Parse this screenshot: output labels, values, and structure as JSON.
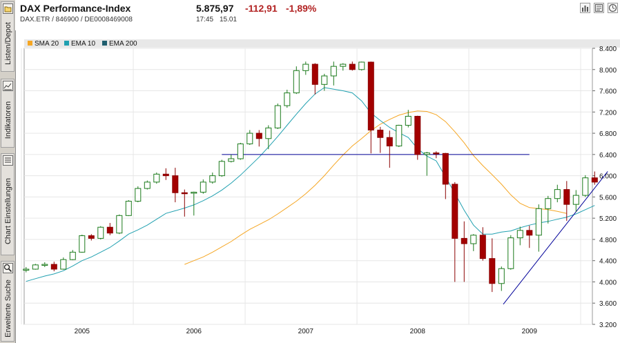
{
  "sidebar": {
    "tabs": [
      {
        "label": "Listen/Depot",
        "icon": "folder-icon"
      },
      {
        "label": "Indikatoren",
        "icon": "chart-icon"
      },
      {
        "label": "Chart Einstellungen",
        "icon": "list-icon"
      },
      {
        "label": "Erweiterte Suche",
        "icon": "magnifier-icon"
      }
    ]
  },
  "header": {
    "title": "DAX Performance-Index",
    "symbol_line": "DAX.ETR  /  846900  /  DE0008469008",
    "price": "5.875,97",
    "change": "-112,91",
    "change_pct": "-1,89%",
    "time": "17:45",
    "date": "15.01",
    "tools": [
      "bar-chart-icon",
      "news-icon",
      "clock-icon"
    ]
  },
  "chart_data": {
    "type": "candlestick",
    "xlabel": "",
    "ylabel": "",
    "ylim": [
      3200,
      8400
    ],
    "yticks": [
      "8.400",
      "8.000",
      "7.600",
      "7.200",
      "6.800",
      "6.400",
      "6.000",
      "5.600",
      "5.200",
      "4.800",
      "4.400",
      "4.000",
      "3.600",
      "3.200"
    ],
    "x_tick_labels": [
      "2005",
      "2006",
      "2007",
      "2008",
      "2009"
    ],
    "x_tick_months": [
      6,
      18,
      30,
      42,
      54
    ],
    "grid": true,
    "legend": [
      {
        "name": "SMA 20",
        "color": "#f5a623"
      },
      {
        "name": "EMA 10",
        "color": "#20a0b0"
      },
      {
        "name": "EMA 200",
        "color": "#1f5e6e"
      }
    ],
    "candles": [
      [
        4220,
        4280,
        4180,
        4240
      ],
      [
        4240,
        4340,
        4230,
        4320
      ],
      [
        4320,
        4370,
        4280,
        4330
      ],
      [
        4330,
        4380,
        4200,
        4240
      ],
      [
        4240,
        4460,
        4230,
        4420
      ],
      [
        4420,
        4600,
        4410,
        4560
      ],
      [
        4560,
        4890,
        4550,
        4870
      ],
      [
        4870,
        4900,
        4780,
        4820
      ],
      [
        4820,
        5050,
        4800,
        5030
      ],
      [
        5030,
        5110,
        4880,
        4920
      ],
      [
        4920,
        5270,
        4900,
        5250
      ],
      [
        5250,
        5540,
        5240,
        5520
      ],
      [
        5520,
        5800,
        5500,
        5760
      ],
      [
        5760,
        5910,
        5740,
        5880
      ],
      [
        5880,
        6060,
        5850,
        6030
      ],
      [
        6030,
        6140,
        5920,
        6000
      ],
      [
        6000,
        6150,
        5500,
        5680
      ],
      [
        5680,
        5740,
        5230,
        5670
      ],
      [
        5670,
        5700,
        5250,
        5690
      ],
      [
        5690,
        5930,
        5660,
        5880
      ],
      [
        5880,
        6060,
        5850,
        6000
      ],
      [
        6000,
        6300,
        5980,
        6270
      ],
      [
        6270,
        6400,
        6250,
        6320
      ],
      [
        6320,
        6620,
        6300,
        6600
      ],
      [
        6600,
        6860,
        6580,
        6800
      ],
      [
        6800,
        6860,
        6550,
        6700
      ],
      [
        6700,
        6950,
        6500,
        6900
      ],
      [
        6900,
        7360,
        6880,
        7320
      ],
      [
        7320,
        7620,
        7280,
        7560
      ],
      [
        7560,
        8060,
        7540,
        7980
      ],
      [
        7980,
        8150,
        7900,
        8100
      ],
      [
        8100,
        8120,
        7530,
        7720
      ],
      [
        7720,
        7920,
        7600,
        7880
      ],
      [
        7880,
        8150,
        7700,
        8060
      ],
      [
        8060,
        8120,
        7980,
        8100
      ],
      [
        8100,
        8150,
        7980,
        8000
      ],
      [
        8000,
        8150,
        7980,
        8140
      ],
      [
        8140,
        8150,
        6420,
        6860
      ],
      [
        6860,
        6920,
        6430,
        6720
      ],
      [
        6720,
        6850,
        6150,
        6560
      ],
      [
        6560,
        6960,
        6540,
        6950
      ],
      [
        6950,
        7240,
        6910,
        7120
      ],
      [
        7120,
        7130,
        6300,
        6400
      ],
      [
        6400,
        6450,
        6000,
        6430
      ],
      [
        6430,
        6460,
        6330,
        6420
      ],
      [
        6420,
        6430,
        5560,
        5840
      ],
      [
        5840,
        5880,
        4000,
        4820
      ],
      [
        4820,
        5140,
        4000,
        4720
      ],
      [
        4720,
        4900,
        4580,
        4880
      ],
      [
        4880,
        5030,
        4400,
        4440
      ],
      [
        4440,
        4820,
        3810,
        3970
      ],
      [
        3970,
        4290,
        3830,
        4250
      ],
      [
        4250,
        4880,
        4230,
        4830
      ],
      [
        4830,
        5040,
        4690,
        4970
      ],
      [
        4970,
        5060,
        4640,
        4880
      ],
      [
        4880,
        5460,
        4570,
        5380
      ],
      [
        5380,
        5620,
        5100,
        5570
      ],
      [
        5570,
        5830,
        5500,
        5740
      ],
      [
        5740,
        5900,
        5150,
        5460
      ],
      [
        5460,
        5730,
        5320,
        5630
      ],
      [
        5630,
        6010,
        5600,
        5960
      ],
      [
        5960,
        6080,
        5830,
        5880
      ]
    ],
    "series": [
      {
        "name": "SMA 20",
        "color": "#f5a623",
        "start": 17,
        "values": [
          4330,
          4400,
          4470,
          4560,
          4660,
          4760,
          4880,
          4990,
          5080,
          5170,
          5280,
          5400,
          5520,
          5660,
          5820,
          6000,
          6200,
          6390,
          6560,
          6700,
          6850,
          6970,
          7060,
          7140,
          7190,
          7220,
          7210,
          7150,
          7020,
          6830,
          6620,
          6380,
          6190,
          6020,
          5840,
          5640,
          5480,
          5400,
          5380,
          5360,
          5330,
          5290
        ]
      },
      {
        "name": "EMA 10",
        "color": "#20a0b0",
        "start": 0,
        "values": [
          4010,
          4060,
          4110,
          4150,
          4210,
          4300,
          4400,
          4470,
          4560,
          4650,
          4770,
          4900,
          4980,
          5070,
          5180,
          5290,
          5340,
          5390,
          5450,
          5530,
          5620,
          5730,
          5860,
          6010,
          6180,
          6350,
          6540,
          6740,
          6950,
          7160,
          7360,
          7540,
          7660,
          7630,
          7600,
          7560,
          7410,
          7180,
          7040,
          6910,
          6810,
          6720,
          6510,
          6370,
          6280,
          5980,
          5670,
          5350,
          5070,
          4900,
          4900,
          4940,
          4960,
          5020,
          5070,
          5110,
          5140,
          5180,
          5220,
          5280,
          5360,
          5440
        ]
      }
    ],
    "hlines": [
      {
        "from": 21,
        "to": 54,
        "y": 6400,
        "color": "#000099"
      }
    ],
    "trendlines": [
      {
        "x1": 51.2,
        "y1": 3580,
        "x2": 62.4,
        "y2": 6080,
        "color": "#000099"
      }
    ]
  }
}
